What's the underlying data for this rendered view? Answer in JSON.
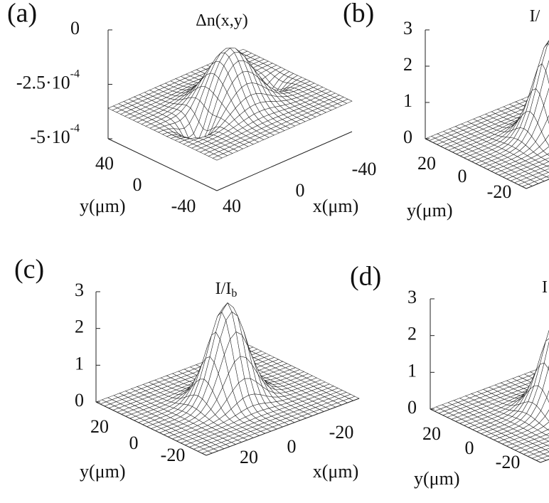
{
  "panels": [
    {
      "label": "(a)",
      "title": {
        "text": "Δn(x,y)"
      },
      "zlim": [
        -0.0005,
        0
      ],
      "zticks": [
        {
          "value": 0,
          "label": "0"
        },
        {
          "value": -0.00025,
          "label": "-2.5·10",
          "exponent": "-4"
        },
        {
          "value": -0.0005,
          "label": "-5·10",
          "exponent": "-4"
        }
      ],
      "yticks": [
        "40",
        "0",
        "-40"
      ],
      "ylabel": "y(μm)",
      "xticks": [
        "40",
        "0",
        "-40"
      ],
      "xlabel": "x(μm)",
      "surface": {
        "plateau": -0.00036,
        "peak": -0.0001,
        "trough": -0.00048
      }
    },
    {
      "label": "(b)",
      "title": {
        "text": "I/"
      },
      "zlim": [
        0,
        3
      ],
      "zticks": [
        {
          "value": 3,
          "label": "3"
        },
        {
          "value": 2,
          "label": "2"
        },
        {
          "value": 1,
          "label": "1"
        },
        {
          "value": 0,
          "label": "0"
        }
      ],
      "yticks": [
        "20",
        "0",
        "-20"
      ],
      "ylabel": "y(μm)",
      "surface": {
        "plateau": 0,
        "peak": 2.7
      }
    },
    {
      "label": "(c)",
      "title": {
        "text": "I/I",
        "sub": "b"
      },
      "zlim": [
        0,
        3
      ],
      "zticks": [
        {
          "value": 3,
          "label": "3"
        },
        {
          "value": 2,
          "label": "2"
        },
        {
          "value": 1,
          "label": "1"
        },
        {
          "value": 0,
          "label": "0"
        }
      ],
      "yticks": [
        "20",
        "0",
        "-20"
      ],
      "ylabel": "y(μm)",
      "xticks": [
        "20",
        "0",
        "-20"
      ],
      "xlabel": "x(μm)",
      "surface": {
        "plateau": 0,
        "peak": 2.65
      }
    },
    {
      "label": "(d)",
      "title": {
        "text": "I"
      },
      "zlim": [
        0,
        3
      ],
      "zticks": [
        {
          "value": 3,
          "label": "3"
        },
        {
          "value": 2,
          "label": "2"
        },
        {
          "value": 1,
          "label": "1"
        },
        {
          "value": 0,
          "label": "0"
        }
      ],
      "yticks": [
        "20",
        "0",
        "-20"
      ],
      "ylabel": "y(μm)",
      "surface": {
        "plateau": 0,
        "peak": 2.7
      }
    }
  ]
}
